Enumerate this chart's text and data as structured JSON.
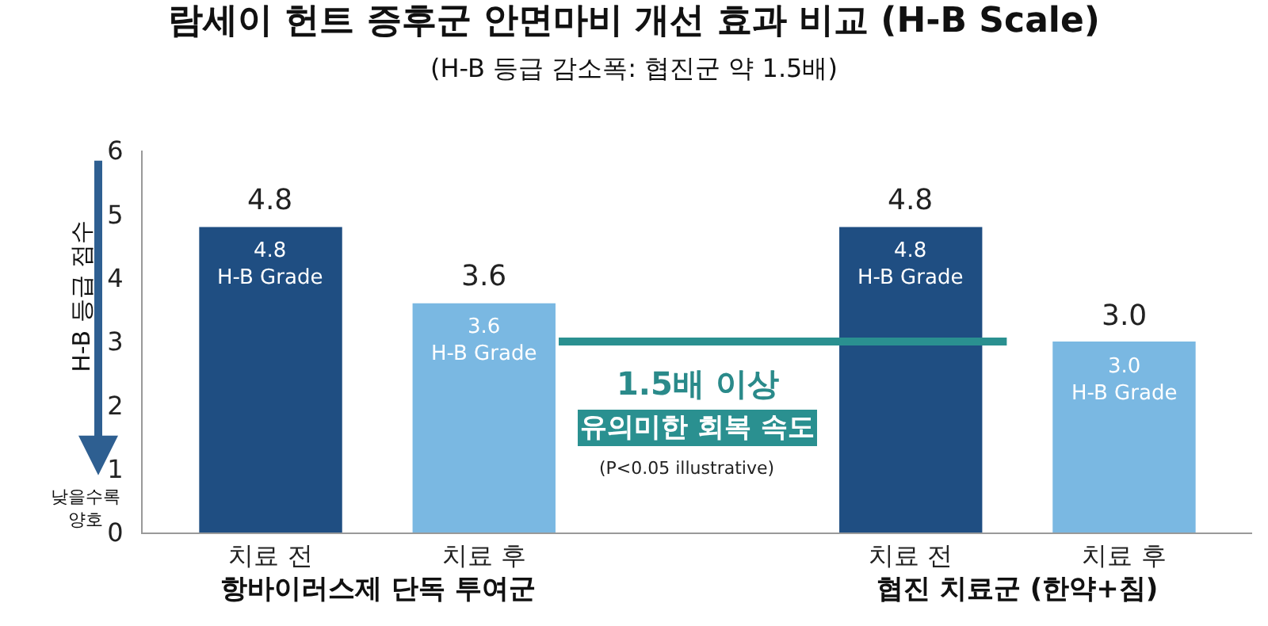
{
  "chart_data": {
    "type": "bar",
    "title": "람세이 헌트 증후군 안면마비 개선 효과 비교 (H-B Scale)",
    "subtitle": "(H-B 등급 감소폭: 협진군 약 1.5배)",
    "ylabel": "H-B 등급 점수",
    "categories": [
      "치료 전",
      "치료 후",
      null,
      "치료 전",
      "치료 후"
    ],
    "values": [
      4.8,
      3.6,
      null,
      4.8,
      3.0
    ],
    "colors": [
      "#1f4e82",
      "#7ab8e2",
      "#7ab8e2",
      "#1f4e82",
      "#7ab8e2"
    ],
    "value_labels": [
      "4.8",
      "3.6",
      null,
      "4.8",
      "3.0"
    ],
    "ylim": [
      0,
      6
    ],
    "yticks": [
      0,
      1,
      2,
      3,
      4,
      5,
      6
    ],
    "legend": false,
    "ref_lines": [
      {
        "axis": "y",
        "value": 3.0,
        "color": "#2a9090"
      }
    ],
    "annotations": [
      "항바이러스제 단독 투여군",
      "협진 치료군 (한약+침)",
      "1.5배 이상",
      "유의미한 회복 속도",
      "(P<0.05 illustrative)",
      "낮을수록 양호",
      "4.8\nH-B Grade",
      "3.6\nH-B Grade",
      "4.8\nH-B Grade",
      "3.0\nH-B Grade"
    ]
  }
}
